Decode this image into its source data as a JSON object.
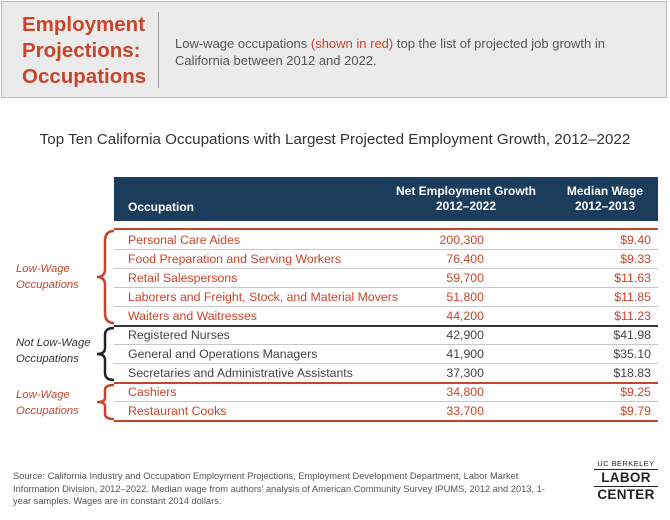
{
  "header": {
    "title": "Employment\nProjections:\nOccupations",
    "desc_before": "Low-wage occupations ",
    "desc_highlight": "(shown in red)",
    "desc_after": " top the list of projected job growth in California between 2012 and 2022."
  },
  "table_title": "Top Ten California Occupations with Largest Projected Employment Growth, 2012–2022",
  "columns": {
    "occupation": "Occupation",
    "growth_line1": "Net Employment Growth",
    "growth_line2": "2012–2022",
    "wage_line1": "Median Wage",
    "wage_line2": "2012–2013"
  },
  "rows": [
    {
      "occupation": "Personal Care Aides",
      "growth": "200,300",
      "wage": "$9.40"
    },
    {
      "occupation": "Food Preparation and Serving Workers",
      "growth": "76,400",
      "wage": "$9.33"
    },
    {
      "occupation": "Retail Salespersons",
      "growth": "59,700",
      "wage": "$11.63"
    },
    {
      "occupation": "Laborers and Freight, Stock, and Material Movers",
      "growth": "51,800",
      "wage": "$11.85"
    },
    {
      "occupation": "Waiters and Waitresses",
      "growth": "44,200",
      "wage": "$11.23"
    },
    {
      "occupation": "Registered Nurses",
      "growth": "42,900",
      "wage": "$41.98"
    },
    {
      "occupation": "General and Operations Managers",
      "growth": "41,900",
      "wage": "$35.10"
    },
    {
      "occupation": "Secretaries and Administrative Assistants",
      "growth": "37,300",
      "wage": "$18.83"
    },
    {
      "occupation": "Cashiers",
      "growth": "34,800",
      "wage": "$9.25"
    },
    {
      "occupation": "Restaurant Cooks",
      "growth": "33,700",
      "wage": "$9.79"
    }
  ],
  "groups": {
    "low_wage_top": "Low-Wage\nOccupations",
    "not_low_wage": "Not Low-Wage\nOccupations",
    "low_wage_bottom": "Low-Wage\nOccupations"
  },
  "source": "Source: California Industry and Occupation Employment Projections, Employment Development Department, Labor Market Information Division, 2012–2022. Median wage from authors’ analysis of American Community Survey IPUMS, 2012 and 2013, 1-year samples. Wages are in constant 2014 dollars.",
  "logo": {
    "top": "UC BERKELEY",
    "line1": "LABOR",
    "line2": "CENTER"
  },
  "colors": {
    "accent_red": "#c8442b",
    "header_navy": "#1b3c5a",
    "header_bg": "#ebebeb"
  }
}
